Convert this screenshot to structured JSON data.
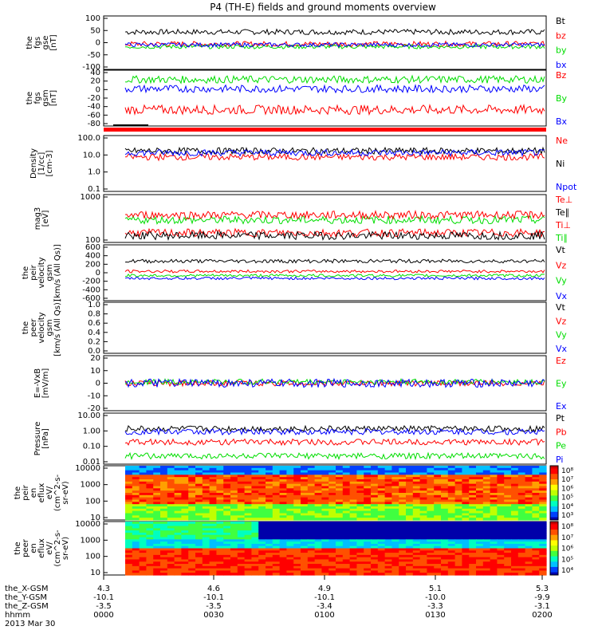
{
  "title": "P4 (TH-E) fields and ground moments overview",
  "date_label": "2013 Mar 30",
  "time_axis": {
    "row_labels": [
      "the_X-GSM",
      "the_Y-GSM",
      "the_Z-GSM",
      "hhmm"
    ],
    "columns": [
      {
        "x": "4.3",
        "y": "-10.1",
        "z": "-3.5",
        "t": "0000"
      },
      {
        "x": "4.6",
        "y": "-10.1",
        "z": "-3.5",
        "t": "0030"
      },
      {
        "x": "4.9",
        "y": "-10.1",
        "z": "-3.4",
        "t": "0100"
      },
      {
        "x": "5.1",
        "y": "-10.0",
        "z": "-3.3",
        "t": "0130"
      },
      {
        "x": "5.3",
        "y": "-9.9",
        "z": "-3.1",
        "t": "0200"
      }
    ]
  },
  "colors": {
    "black": "#000000",
    "red": "#ff0000",
    "green": "#00dd00",
    "blue": "#0000ff"
  },
  "chart_data": [
    {
      "id": "fgs_gse",
      "type": "line",
      "ylabel": [
        "the",
        "fgs",
        "gse",
        "[nT]"
      ],
      "yticks": [
        "100",
        "50",
        "0",
        "-50",
        "-100"
      ],
      "ylim": [
        -100,
        100
      ],
      "legend": [
        {
          "name": "Bt",
          "color": "black"
        },
        {
          "name": "bz",
          "color": "red"
        },
        {
          "name": "by",
          "color": "green"
        },
        {
          "name": "bx",
          "color": "blue"
        }
      ],
      "series": [
        {
          "name": "Bt",
          "level": 40,
          "noise": 10
        },
        {
          "name": "bz",
          "level": -5,
          "noise": 10
        },
        {
          "name": "by",
          "level": -15,
          "noise": 8
        },
        {
          "name": "bx",
          "level": -8,
          "noise": 8
        }
      ]
    },
    {
      "id": "fgs_gsm",
      "type": "line",
      "ylabel": [
        "the",
        "fgs",
        "gsm",
        "[nT]"
      ],
      "yticks": [
        "40",
        "20",
        "0",
        "-20",
        "-40",
        "-60",
        "-80"
      ],
      "ylim": [
        -80,
        40
      ],
      "legend": [
        {
          "name": "Bz",
          "color": "red"
        },
        {
          "name": "By",
          "color": "green"
        },
        {
          "name": "Bx",
          "color": "blue"
        }
      ],
      "series": [
        {
          "name": "Bz",
          "level": -45,
          "noise": 10
        },
        {
          "name": "By",
          "level": 20,
          "noise": 8
        },
        {
          "name": "Bx",
          "level": 0,
          "noise": 8
        }
      ]
    },
    {
      "id": "density",
      "type": "line",
      "log": true,
      "ylabel": [
        "Density",
        "[1/cc]",
        "[cm-3]"
      ],
      "yticks": [
        "100.0",
        "10.0",
        "1.0",
        "0.1"
      ],
      "ylim": [
        0.1,
        100
      ],
      "legend": [
        {
          "name": "Ne",
          "color": "red"
        },
        {
          "name": "Ni",
          "color": "black"
        },
        {
          "name": "Npot",
          "color": "blue"
        }
      ],
      "series": [
        {
          "name": "Ni",
          "level": 15
        },
        {
          "name": "Ne",
          "level": 7
        },
        {
          "name": "Npot",
          "level": 12
        }
      ]
    },
    {
      "id": "temp",
      "type": "line",
      "log": true,
      "ylabel": [
        "mag3",
        "[eV]"
      ],
      "yticks": [
        "1000",
        "100"
      ],
      "ylim": [
        30,
        4000
      ],
      "legend": [
        {
          "name": "Te⊥",
          "color": "red"
        },
        {
          "name": "Te∥",
          "color": "black"
        },
        {
          "name": "Ti⊥",
          "color": "red"
        },
        {
          "name": "Ti∥",
          "color": "green"
        }
      ],
      "series": [
        {
          "name": "Ti∥",
          "level": 300
        },
        {
          "name": "Ti⊥",
          "level": 500
        },
        {
          "name": "Te⊥",
          "level": 80
        },
        {
          "name": "Te∥",
          "level": 60
        }
      ]
    },
    {
      "id": "peir_velocity",
      "type": "line",
      "ylabel": [
        "the",
        "peir",
        "velocity",
        "gsm",
        "[km/s (All Qs)]"
      ],
      "yticks": [
        "600",
        "400",
        "200",
        "0",
        "-200",
        "-400",
        "-600"
      ],
      "ylim": [
        -600,
        600
      ],
      "legend": [
        {
          "name": "Vt",
          "color": "black"
        },
        {
          "name": "Vz",
          "color": "red"
        },
        {
          "name": "Vy",
          "color": "green"
        },
        {
          "name": "Vx",
          "color": "blue"
        }
      ],
      "series": [
        {
          "name": "Vt",
          "level": 250,
          "noise": 40
        },
        {
          "name": "Vz",
          "level": 30,
          "noise": 30
        },
        {
          "name": "Vy",
          "level": -60,
          "noise": 30
        },
        {
          "name": "Vx",
          "level": -120,
          "noise": 30
        }
      ]
    },
    {
      "id": "peer_velocity",
      "type": "line",
      "ylabel": [
        "the",
        "peer",
        "velocity",
        "gsm",
        "[km/s (All Qs)]"
      ],
      "yticks": [
        "1.0",
        "0.8",
        "0.6",
        "0.4",
        "0.2",
        "0.0"
      ],
      "ylim": [
        0,
        1
      ],
      "legend": [
        {
          "name": "Vt",
          "color": "black"
        },
        {
          "name": "Vz",
          "color": "red"
        },
        {
          "name": "Vy",
          "color": "green"
        },
        {
          "name": "Vx",
          "color": "blue"
        }
      ],
      "series": []
    },
    {
      "id": "efield",
      "type": "line",
      "ylabel": [
        "E=-VxB",
        "[mV/m]"
      ],
      "yticks": [
        "20",
        "10",
        "0",
        "-10",
        "-20"
      ],
      "ylim": [
        -20,
        20
      ],
      "legend": [
        {
          "name": "Ez",
          "color": "red"
        },
        {
          "name": "Ey",
          "color": "green"
        },
        {
          "name": "Ex",
          "color": "blue"
        }
      ],
      "series": [
        {
          "name": "Ez",
          "level": 0,
          "noise": 2
        },
        {
          "name": "Ey",
          "level": 1,
          "noise": 2
        },
        {
          "name": "Ex",
          "level": 0,
          "noise": 3
        }
      ]
    },
    {
      "id": "pressure",
      "type": "line",
      "log": true,
      "ylabel": [
        "Pressure",
        "[nPa]"
      ],
      "yticks": [
        "10.00",
        "1.00",
        "0.10",
        "0.01"
      ],
      "ylim": [
        0.01,
        10
      ],
      "legend": [
        {
          "name": "Pt",
          "color": "black"
        },
        {
          "name": "Pb",
          "color": "red"
        },
        {
          "name": "Pe",
          "color": "green"
        },
        {
          "name": "Pi",
          "color": "blue"
        }
      ],
      "series": [
        {
          "name": "Pt",
          "level": 1.2
        },
        {
          "name": "Pi",
          "level": 0.8
        },
        {
          "name": "Pb",
          "level": 0.2
        },
        {
          "name": "Pe",
          "level": 0.03
        }
      ]
    },
    {
      "id": "peir_spec",
      "type": "heatmap",
      "ylabel": [
        "the",
        "peir",
        "en",
        "eflux",
        "eV/",
        "(cm^2-s-",
        "sr-eV)"
      ],
      "yticks": [
        "10000",
        "1000",
        "100",
        "10"
      ],
      "colorbar_labels": [
        "10⁸",
        "10⁷",
        "10⁶",
        "10⁵",
        "10⁴",
        "10³"
      ]
    },
    {
      "id": "peer_spec",
      "type": "heatmap",
      "ylabel": [
        "the",
        "peer",
        "en",
        "eflux",
        "eV/",
        "(cm^2-s-",
        "sr-eV)"
      ],
      "yticks": [
        "10000",
        "1000",
        "100",
        "10"
      ],
      "colorbar_labels": [
        "10⁸",
        "10⁷",
        "10⁶",
        "10⁵",
        "10⁴"
      ]
    }
  ]
}
